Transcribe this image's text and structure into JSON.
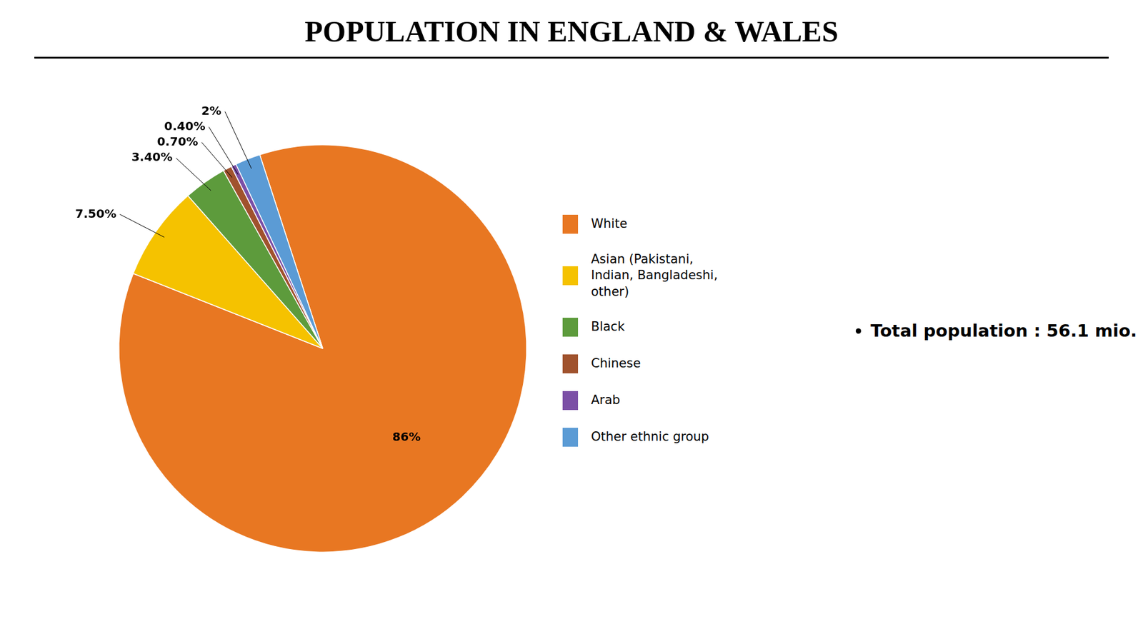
{
  "chart_data": {
    "type": "pie",
    "title": "POPULATION IN ENGLAND & WALES",
    "categories": [
      "White",
      "Asian (Pakistani,\nIndian, Bangladeshi,\nother)",
      "Black",
      "Chinese",
      "Arab",
      "Other ethnic group"
    ],
    "values": [
      86,
      7.5,
      3.4,
      0.7,
      0.4,
      2.0
    ],
    "value_labels": [
      "86%",
      "7.50%",
      "3.40%",
      "0.70%",
      "0.40%",
      "2%"
    ],
    "colors": [
      "#E87722",
      "#F5C200",
      "#5D9B3C",
      "#A0522D",
      "#7B4FA6",
      "#5B9BD5"
    ],
    "data_labels": true,
    "legend": "right",
    "annotations": [
      "Total population : 56.1 mio."
    ]
  }
}
